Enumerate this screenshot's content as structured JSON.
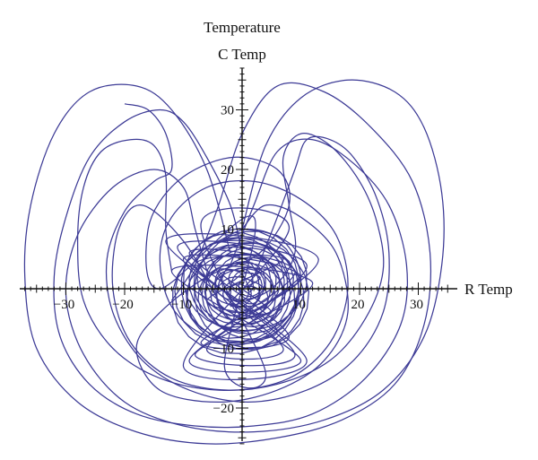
{
  "chart_data": {
    "type": "line",
    "title": "Temperature",
    "xlabel": "R Temp",
    "ylabel": "C Temp",
    "xlim": [
      -37,
      35
    ],
    "ylim": [
      -26,
      37
    ],
    "x_ticks": [
      -30,
      -20,
      -10,
      10,
      20,
      30
    ],
    "y_ticks": [
      -20,
      -10,
      10,
      20,
      30
    ],
    "grid": false,
    "line_color": "#3d3b96",
    "series": [
      {
        "points": [
          [
            0,
            0
          ],
          [
            3,
            2
          ],
          [
            -4,
            3
          ],
          [
            5,
            -4
          ],
          [
            -6,
            -2
          ],
          [
            7,
            5
          ],
          [
            -8,
            4
          ],
          [
            6,
            -7
          ],
          [
            -5,
            -8
          ],
          [
            9,
            3
          ],
          [
            -9,
            6
          ],
          [
            8,
            -8
          ],
          [
            -7,
            -9
          ],
          [
            10,
            2
          ],
          [
            -10,
            5
          ],
          [
            7,
            -10
          ],
          [
            -6,
            -10
          ],
          [
            11,
            4
          ],
          [
            -11,
            7
          ],
          [
            9,
            -11
          ],
          [
            -8,
            -11
          ],
          [
            12,
            1
          ],
          [
            -12,
            3
          ],
          [
            10,
            -12
          ],
          [
            -9,
            -12
          ],
          [
            13,
            5
          ],
          [
            -13,
            8
          ],
          [
            11,
            -12
          ],
          [
            -10,
            -13
          ],
          [
            8,
            10
          ],
          [
            -7,
            11
          ],
          [
            4,
            -14
          ],
          [
            -3,
            -13
          ],
          [
            2,
            12
          ],
          [
            -14,
            0
          ],
          [
            -16,
            10
          ],
          [
            -11,
            18
          ],
          [
            -2,
            22
          ],
          [
            6,
            20
          ],
          [
            8,
            14
          ],
          [
            3,
            6
          ],
          [
            -6,
            2
          ],
          [
            -14,
            -4
          ],
          [
            -18,
            -10
          ],
          [
            -14,
            -17
          ],
          [
            -4,
            -19
          ],
          [
            6,
            -17
          ],
          [
            14,
            -12
          ],
          [
            18,
            -4
          ],
          [
            16,
            6
          ],
          [
            10,
            12
          ],
          [
            4,
            14
          ],
          [
            0,
            10
          ]
        ]
      },
      {
        "points": [
          [
            0,
            6
          ],
          [
            -2,
            14
          ],
          [
            -6,
            22
          ],
          [
            -10,
            28
          ],
          [
            -14,
            30
          ],
          [
            -20,
            28
          ],
          [
            -26,
            22
          ],
          [
            -30,
            12
          ],
          [
            -32,
            2
          ],
          [
            -31,
            -8
          ],
          [
            -26,
            -16
          ],
          [
            -18,
            -21
          ],
          [
            -8,
            -23
          ],
          [
            2,
            -23
          ],
          [
            12,
            -21
          ],
          [
            21,
            -15
          ],
          [
            27,
            -6
          ],
          [
            28,
            4
          ],
          [
            25,
            14
          ],
          [
            19,
            21
          ],
          [
            12,
            25
          ],
          [
            6,
            23
          ],
          [
            2,
            14
          ],
          [
            -2,
            4
          ]
        ]
      },
      {
        "points": [
          [
            -2,
            6
          ],
          [
            -6,
            20
          ],
          [
            -12,
            30
          ],
          [
            -18,
            34
          ],
          [
            -26,
            33
          ],
          [
            -32,
            26
          ],
          [
            -36,
            14
          ],
          [
            -37,
            2
          ],
          [
            -35,
            -10
          ],
          [
            -28,
            -19
          ],
          [
            -18,
            -24
          ],
          [
            -6,
            -26
          ],
          [
            6,
            -25
          ],
          [
            17,
            -22
          ],
          [
            26,
            -16
          ],
          [
            31,
            -6
          ],
          [
            32,
            6
          ],
          [
            29,
            18
          ],
          [
            22,
            27
          ],
          [
            14,
            33
          ],
          [
            6,
            34
          ],
          [
            0,
            26
          ],
          [
            -4,
            14
          ],
          [
            -8,
            4
          ],
          [
            -12,
            -2
          ]
        ]
      },
      {
        "points": [
          [
            0,
            10
          ],
          [
            4,
            24
          ],
          [
            10,
            32
          ],
          [
            18,
            35
          ],
          [
            26,
            33
          ],
          [
            31,
            27
          ],
          [
            34,
            16
          ],
          [
            34,
            4
          ],
          [
            31,
            -8
          ],
          [
            24,
            -17
          ],
          [
            14,
            -22
          ],
          [
            2,
            -24
          ],
          [
            -10,
            -23
          ],
          [
            -20,
            -19
          ],
          [
            -27,
            -11
          ],
          [
            -30,
            -1
          ],
          [
            -28,
            9
          ],
          [
            -22,
            17
          ],
          [
            -15,
            20
          ],
          [
            -10,
            17
          ],
          [
            -8,
            10
          ],
          [
            -6,
            3
          ]
        ]
      },
      {
        "points": [
          [
            -12,
            3
          ],
          [
            -13,
            10
          ],
          [
            -13,
            19
          ],
          [
            -15,
            24
          ],
          [
            -19,
            25
          ],
          [
            -24,
            23
          ],
          [
            -27,
            17
          ],
          [
            -28,
            8
          ],
          [
            -27,
            -2
          ],
          [
            -22,
            -10
          ],
          [
            -14,
            -15
          ],
          [
            -4,
            -17
          ],
          [
            6,
            -16
          ],
          [
            15,
            -12
          ],
          [
            21,
            -5
          ],
          [
            24,
            3
          ],
          [
            23,
            11
          ],
          [
            20,
            18
          ],
          [
            15,
            24
          ],
          [
            10,
            26
          ],
          [
            7,
            22
          ],
          [
            8,
            14
          ],
          [
            9,
            6
          ],
          [
            5,
            0
          ],
          [
            -2,
            -3
          ]
        ]
      },
      {
        "points": [
          [
            2,
            2
          ],
          [
            6,
            12
          ],
          [
            9,
            20
          ],
          [
            11,
            25
          ],
          [
            15,
            25
          ],
          [
            19,
            22
          ],
          [
            23,
            15
          ],
          [
            25,
            6
          ],
          [
            24,
            -4
          ],
          [
            19,
            -12
          ],
          [
            11,
            -17
          ],
          [
            1,
            -19
          ],
          [
            -9,
            -17
          ],
          [
            -17,
            -12
          ],
          [
            -22,
            -4
          ],
          [
            -23,
            5
          ],
          [
            -20,
            13
          ],
          [
            -15,
            18
          ],
          [
            -12,
            20
          ],
          [
            -13,
            26
          ],
          [
            -16,
            30
          ],
          [
            -20,
            31
          ]
        ]
      },
      {
        "points": [
          [
            -4,
            -2
          ],
          [
            -10,
            8
          ],
          [
            -17,
            14
          ],
          [
            -21,
            10
          ],
          [
            -22,
            0
          ],
          [
            -19,
            -9
          ],
          [
            -12,
            -15
          ],
          [
            -2,
            -17
          ],
          [
            8,
            -15
          ],
          [
            15,
            -9
          ],
          [
            18,
            0
          ],
          [
            16,
            9
          ],
          [
            10,
            15
          ],
          [
            2,
            18
          ],
          [
            -6,
            17
          ],
          [
            -12,
            12
          ],
          [
            -14,
            5
          ],
          [
            -12,
            -3
          ],
          [
            -6,
            -8
          ],
          [
            2,
            -9
          ],
          [
            8,
            -5
          ],
          [
            10,
            2
          ],
          [
            7,
            8
          ],
          [
            1,
            10
          ],
          [
            -4,
            8
          ]
        ]
      }
    ]
  }
}
